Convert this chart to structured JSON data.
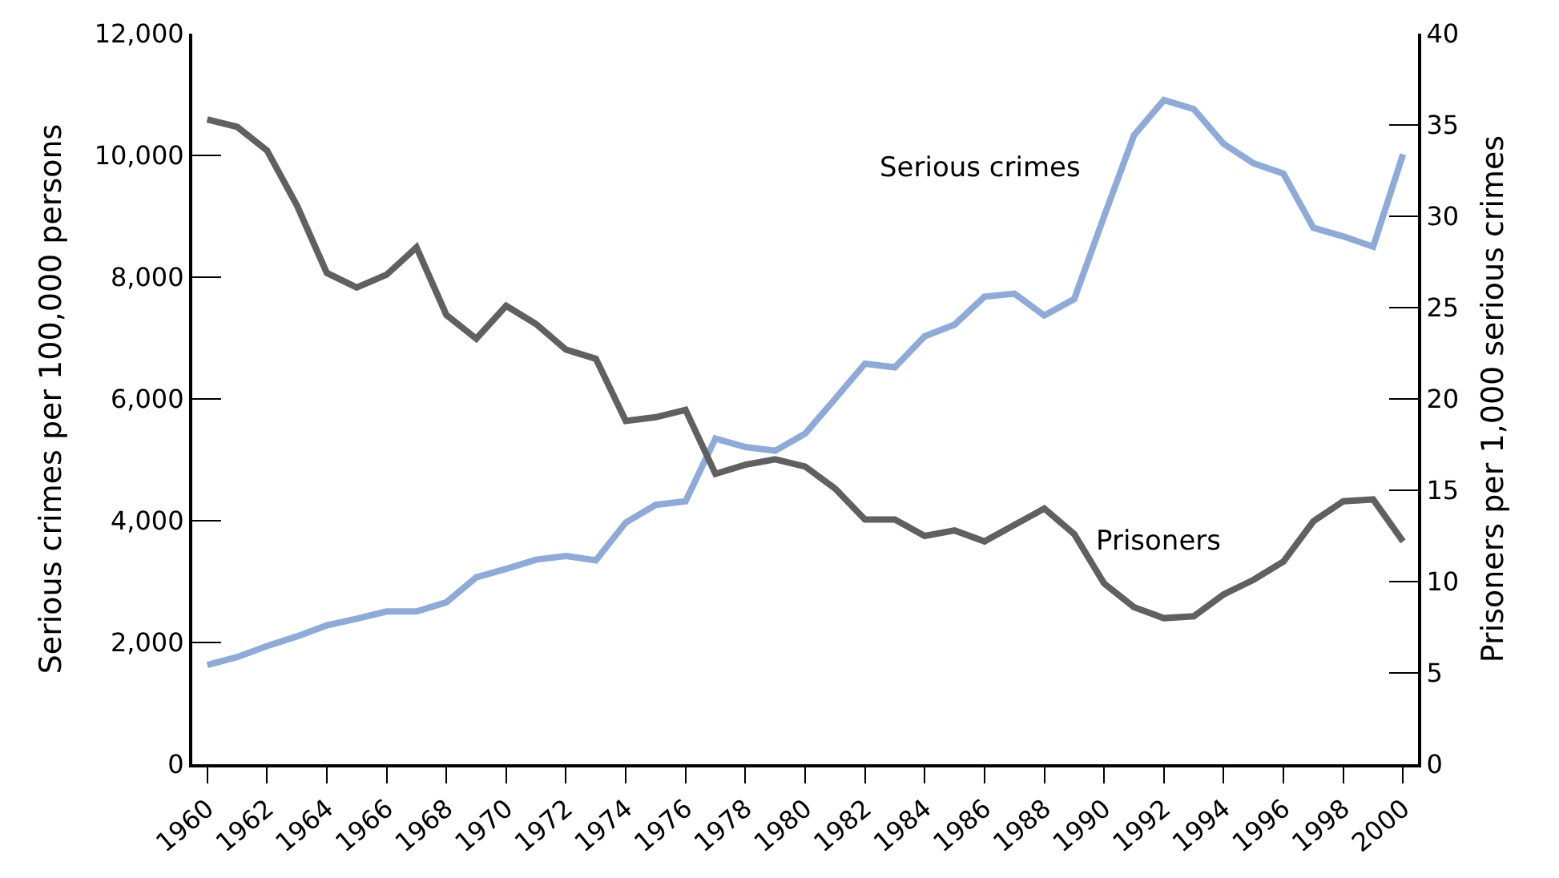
{
  "chart_data": {
    "type": "line",
    "x": [
      1960,
      1961,
      1962,
      1963,
      1964,
      1965,
      1966,
      1967,
      1968,
      1969,
      1970,
      1971,
      1972,
      1973,
      1974,
      1975,
      1976,
      1977,
      1978,
      1979,
      1980,
      1981,
      1982,
      1983,
      1984,
      1985,
      1986,
      1987,
      1988,
      1989,
      1990,
      1991,
      1992,
      1993,
      1994,
      1995,
      1996,
      1997,
      1998,
      1999,
      2000
    ],
    "series": [
      {
        "color": "#8eaad8",
        "values": [
          1630,
          1760,
          1940,
          2100,
          2280,
          2390,
          2510,
          2510,
          2660,
          3070,
          3210,
          3360,
          3420,
          3350,
          3970,
          4260,
          4320,
          5350,
          5210,
          5150,
          5430,
          6000,
          6580,
          6520,
          7030,
          7220,
          7680,
          7730,
          7370,
          7640,
          9000,
          10330,
          10910,
          10760,
          10190,
          9870,
          9700,
          8810,
          8670,
          8500,
          10020
        ]
      },
      {
        "color": "#606060",
        "axis": "y2",
        "values": [
          35.3,
          34.9,
          33.6,
          30.6,
          26.9,
          26.1,
          26.8,
          28.3,
          24.6,
          23.3,
          25.1,
          24.1,
          22.7,
          22.2,
          18.8,
          19.0,
          19.4,
          15.9,
          16.4,
          16.7,
          16.3,
          15.1,
          13.4,
          13.4,
          12.5,
          12.8,
          12.2,
          13.1,
          14.0,
          12.6,
          9.9,
          8.6,
          8.0,
          8.1,
          9.3,
          10.1,
          11.1,
          13.3,
          14.4,
          14.5,
          12.2
        ]
      }
    ],
    "ylabel": "Serious crimes per 100,000 persons",
    "y2label": "Prisoners per 1,000 serious crimes",
    "xlim": [
      1959.5,
      2000.5
    ],
    "xticks": [
      1960,
      1962,
      1964,
      1966,
      1968,
      1970,
      1972,
      1974,
      1976,
      1978,
      1980,
      1982,
      1984,
      1986,
      1988,
      1990,
      1992,
      1994,
      1996,
      1998,
      2000
    ],
    "ylim": [
      0,
      12000
    ],
    "yticks": [
      {
        "value": 0,
        "label": "0"
      },
      {
        "value": 2000,
        "label": "2,000"
      },
      {
        "value": 4000,
        "label": "4,000"
      },
      {
        "value": 6000,
        "label": "6,000"
      },
      {
        "value": 8000,
        "label": "8,000"
      },
      {
        "value": 10000,
        "label": "10,000"
      },
      {
        "value": 12000,
        "label": "12,000"
      }
    ],
    "y2lim": [
      0,
      40
    ],
    "y2ticks": [
      0,
      5,
      10,
      15,
      20,
      25,
      30,
      35,
      40
    ],
    "annotations": [
      "Serious crimes",
      "Prisoners"
    ],
    "marker": "none",
    "line_style": "solid"
  }
}
